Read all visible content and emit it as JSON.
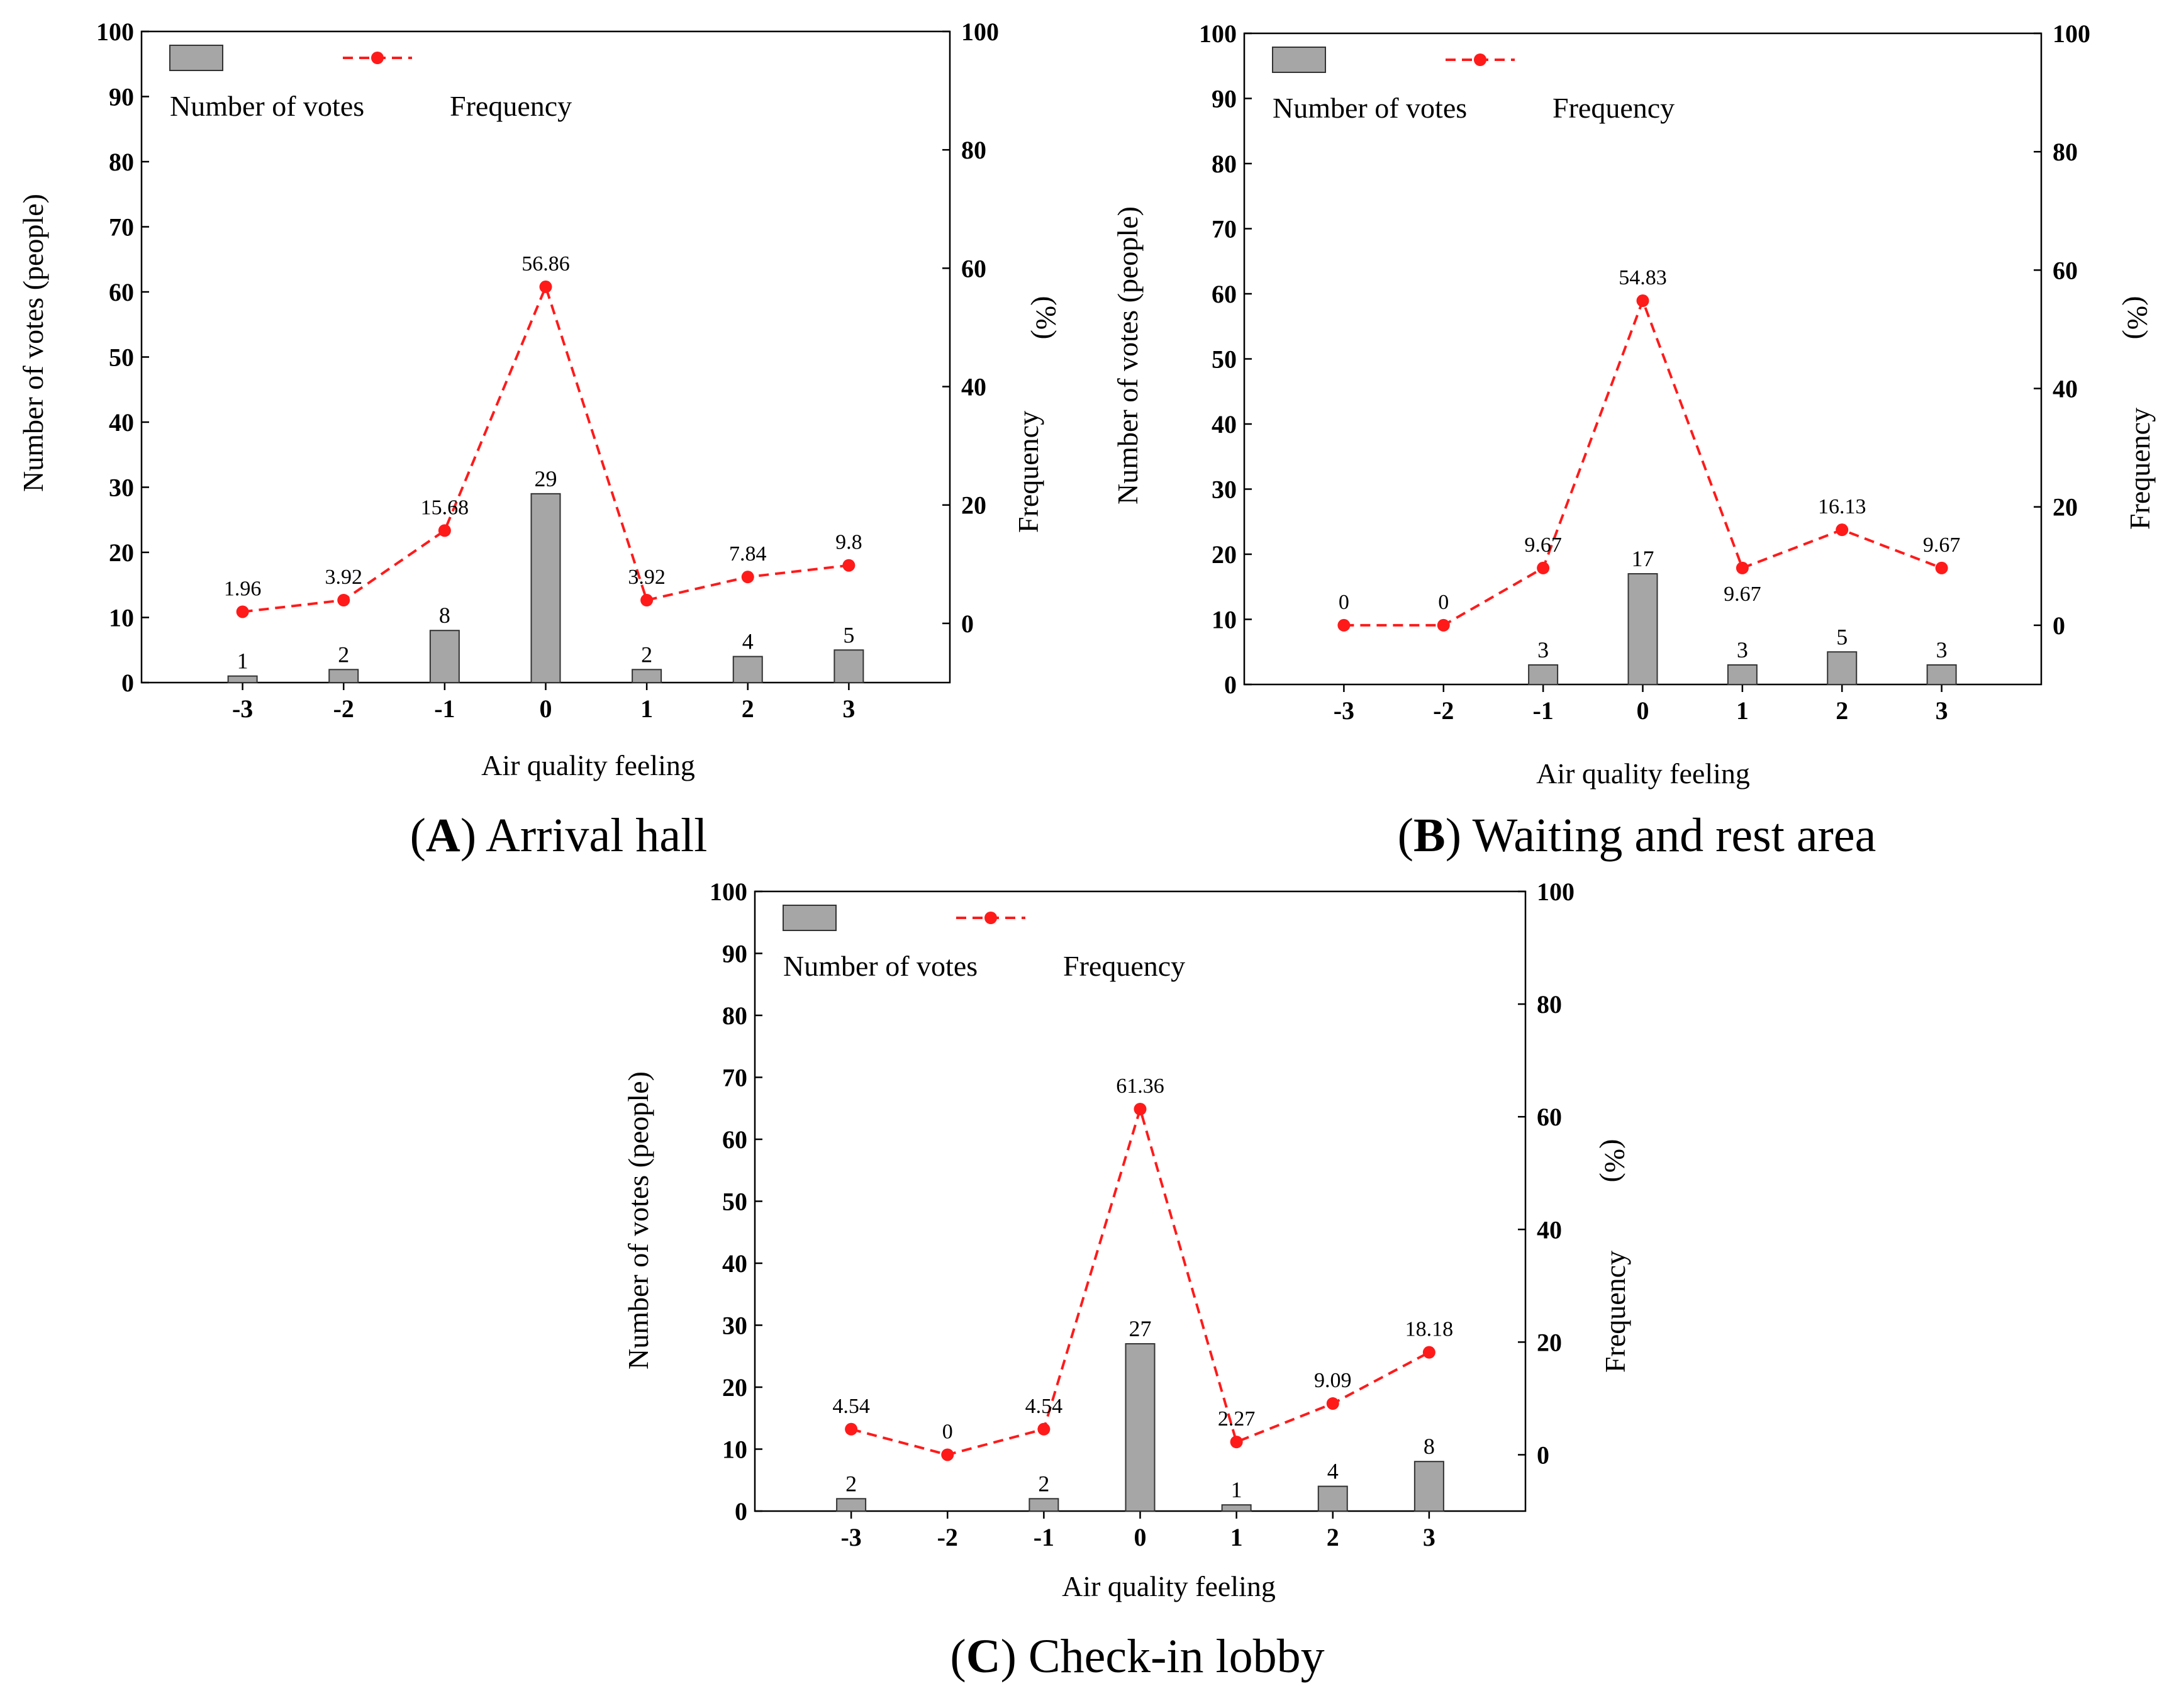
{
  "chart_data": [
    {
      "type": "bar+line",
      "panel_letter": "A",
      "caption": "Arrival hall",
      "xlabel": "Air quality feeling",
      "ylabel_left": "Number of votes (people)",
      "ylabel_right_main": "Frequency",
      "ylabel_right_unit": "(%)",
      "categories": [
        "-3",
        "-2",
        "-1",
        "0",
        "1",
        "2",
        "3"
      ],
      "left_ticks": [
        "0",
        "10",
        "20",
        "30",
        "40",
        "50",
        "60",
        "70",
        "80",
        "90",
        "100"
      ],
      "right_ticks": [
        "0",
        "20",
        "40",
        "60",
        "80",
        "100"
      ],
      "ylim_left": [
        0,
        100
      ],
      "ylim_right": [
        -10,
        100
      ],
      "legend": {
        "bar_label": "Number of votes",
        "line_label": "Frequency",
        "position": "top-left"
      },
      "series": [
        {
          "name": "Number of votes",
          "axis": "left",
          "kind": "bar",
          "values": [
            1,
            2,
            8,
            29,
            2,
            4,
            5
          ],
          "labels": [
            "1",
            "2",
            "8",
            "29",
            "2",
            "4",
            "5"
          ]
        },
        {
          "name": "Frequency",
          "axis": "right",
          "kind": "line",
          "values": [
            1.96,
            3.92,
            15.68,
            56.86,
            3.92,
            7.84,
            9.8
          ],
          "labels": [
            "1.96",
            "3.92",
            "15.68",
            "56.86",
            "3.92",
            "7.84",
            "9.8"
          ]
        }
      ]
    },
    {
      "type": "bar+line",
      "panel_letter": "B",
      "caption": "Waiting and rest area",
      "xlabel": "Air quality feeling",
      "ylabel_left": "Number of votes (people)",
      "ylabel_right_main": "Frequency",
      "ylabel_right_unit": "(%)",
      "categories": [
        "-3",
        "-2",
        "-1",
        "0",
        "1",
        "2",
        "3"
      ],
      "left_ticks": [
        "0",
        "10",
        "20",
        "30",
        "40",
        "50",
        "60",
        "70",
        "80",
        "90",
        "100"
      ],
      "right_ticks": [
        "0",
        "20",
        "40",
        "60",
        "80",
        "100"
      ],
      "ylim_left": [
        0,
        100
      ],
      "ylim_right": [
        -10,
        100
      ],
      "legend": {
        "bar_label": "Number of votes",
        "line_label": "Frequency",
        "position": "top-left"
      },
      "series": [
        {
          "name": "Number of votes",
          "axis": "left",
          "kind": "bar",
          "values": [
            0,
            0,
            3,
            17,
            3,
            5,
            3
          ],
          "labels": [
            "",
            "",
            "3",
            "17",
            "3",
            "5",
            "3"
          ]
        },
        {
          "name": "Frequency",
          "axis": "right",
          "kind": "line",
          "values": [
            0,
            0,
            9.67,
            54.83,
            9.67,
            16.13,
            9.67
          ],
          "labels": [
            "0",
            "0",
            "9.67",
            "54.83",
            "9.67",
            "16.13",
            "9.67"
          ]
        }
      ]
    },
    {
      "type": "bar+line",
      "panel_letter": "C",
      "caption": "Check-in lobby",
      "xlabel": "Air quality feeling",
      "ylabel_left": "Number of votes (people)",
      "ylabel_right_main": "Frequency",
      "ylabel_right_unit": "(%)",
      "categories": [
        "-3",
        "-2",
        "-1",
        "0",
        "1",
        "2",
        "3"
      ],
      "left_ticks": [
        "0",
        "10",
        "20",
        "30",
        "40",
        "50",
        "60",
        "70",
        "80",
        "90",
        "100"
      ],
      "right_ticks": [
        "0",
        "20",
        "40",
        "60",
        "80",
        "100"
      ],
      "ylim_left": [
        0,
        100
      ],
      "ylim_right": [
        -10,
        100
      ],
      "legend": {
        "bar_label": "Number of votes",
        "line_label": "Frequency",
        "position": "top-left"
      },
      "series": [
        {
          "name": "Number of votes",
          "axis": "left",
          "kind": "bar",
          "values": [
            2,
            0,
            2,
            27,
            1,
            4,
            8
          ],
          "labels": [
            "2",
            "",
            "2",
            "27",
            "1",
            "4",
            "8"
          ]
        },
        {
          "name": "Frequency",
          "axis": "right",
          "kind": "line",
          "values": [
            4.54,
            0,
            4.54,
            61.36,
            2.27,
            9.09,
            18.18
          ],
          "labels": [
            "4.54",
            "0",
            "4.54",
            "61.36",
            "2.27",
            "9.09",
            "18.18"
          ]
        }
      ]
    }
  ],
  "colors": {
    "bar_fill": "#a6a6a6",
    "bar_stroke": "#333333",
    "line": "#ff1a1a",
    "axis": "#000000",
    "text": "#000000"
  }
}
